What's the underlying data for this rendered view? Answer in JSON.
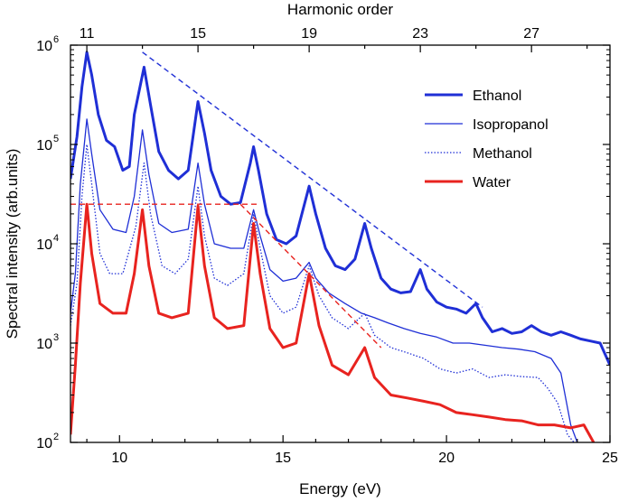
{
  "chart_data": {
    "type": "line",
    "xlabel": "Energy (eV)",
    "ylabel": "Spectral intensity (arb.units)",
    "top_axis_label": "Harmonic order",
    "xlim": [
      8.5,
      25
    ],
    "ylim": [
      100,
      1000000
    ],
    "yscale": "log",
    "x_ticks": [
      10,
      15,
      20,
      25
    ],
    "x_tick_labels": [
      "10",
      "15",
      "20",
      "25"
    ],
    "y_ticks": [
      {
        "value": 100,
        "base": "10",
        "exp": "2"
      },
      {
        "value": 1000,
        "base": "10",
        "exp": "3"
      },
      {
        "value": 10000,
        "base": "10",
        "exp": "4"
      },
      {
        "value": 100000,
        "base": "10",
        "exp": "5"
      },
      {
        "value": 1000000,
        "base": "10",
        "exp": "6"
      }
    ],
    "top_ticks": [
      {
        "energy": 9.0,
        "label": "11"
      },
      {
        "energy": 12.4,
        "label": "15"
      },
      {
        "energy": 15.8,
        "label": "19"
      },
      {
        "energy": 19.2,
        "label": "23"
      },
      {
        "energy": 22.6,
        "label": "27"
      }
    ],
    "top_minor_energies": [
      10.7,
      14.1,
      17.5,
      20.9,
      24.3
    ],
    "legend_position": "top-right",
    "series": [
      {
        "name": "Ethanol",
        "color": "#1f2fd6",
        "style": "solid",
        "width": 3,
        "points": [
          [
            8.5,
            45000
          ],
          [
            8.7,
            120000
          ],
          [
            8.85,
            380000
          ],
          [
            9.0,
            850000
          ],
          [
            9.15,
            500000
          ],
          [
            9.35,
            200000
          ],
          [
            9.6,
            110000
          ],
          [
            9.85,
            95000
          ],
          [
            10.1,
            55000
          ],
          [
            10.3,
            60000
          ],
          [
            10.45,
            200000
          ],
          [
            10.75,
            600000
          ],
          [
            10.95,
            250000
          ],
          [
            11.2,
            85000
          ],
          [
            11.5,
            55000
          ],
          [
            11.8,
            45000
          ],
          [
            12.1,
            55000
          ],
          [
            12.4,
            270000
          ],
          [
            12.6,
            130000
          ],
          [
            12.8,
            55000
          ],
          [
            13.1,
            30000
          ],
          [
            13.4,
            25000
          ],
          [
            13.7,
            26000
          ],
          [
            14.0,
            65000
          ],
          [
            14.1,
            95000
          ],
          [
            14.25,
            55000
          ],
          [
            14.5,
            20000
          ],
          [
            14.8,
            11000
          ],
          [
            15.1,
            10000
          ],
          [
            15.4,
            12000
          ],
          [
            15.8,
            38000
          ],
          [
            16.0,
            20000
          ],
          [
            16.3,
            9000
          ],
          [
            16.6,
            6000
          ],
          [
            16.9,
            5500
          ],
          [
            17.2,
            7000
          ],
          [
            17.5,
            16000
          ],
          [
            17.7,
            9000
          ],
          [
            18.0,
            4500
          ],
          [
            18.3,
            3500
          ],
          [
            18.6,
            3200
          ],
          [
            18.9,
            3300
          ],
          [
            19.2,
            5500
          ],
          [
            19.4,
            3500
          ],
          [
            19.7,
            2600
          ],
          [
            20.0,
            2300
          ],
          [
            20.3,
            2200
          ],
          [
            20.6,
            2000
          ],
          [
            20.9,
            2500
          ],
          [
            21.1,
            1800
          ],
          [
            21.4,
            1300
          ],
          [
            21.7,
            1400
          ],
          [
            22.0,
            1250
          ],
          [
            22.3,
            1300
          ],
          [
            22.6,
            1500
          ],
          [
            22.9,
            1300
          ],
          [
            23.2,
            1200
          ],
          [
            23.5,
            1300
          ],
          [
            23.8,
            1200
          ],
          [
            24.1,
            1100
          ],
          [
            24.4,
            1050
          ],
          [
            24.7,
            1000
          ],
          [
            25.0,
            600
          ]
        ]
      },
      {
        "name": "Isopropanol",
        "color": "#1f2fd6",
        "style": "solid",
        "width": 1.3,
        "points": [
          [
            8.5,
            2000
          ],
          [
            8.65,
            5000
          ],
          [
            8.8,
            40000
          ],
          [
            9.0,
            180000
          ],
          [
            9.15,
            80000
          ],
          [
            9.4,
            22000
          ],
          [
            9.8,
            14000
          ],
          [
            10.2,
            13000
          ],
          [
            10.45,
            30000
          ],
          [
            10.7,
            140000
          ],
          [
            10.9,
            50000
          ],
          [
            11.2,
            16000
          ],
          [
            11.6,
            13000
          ],
          [
            12.1,
            14000
          ],
          [
            12.4,
            65000
          ],
          [
            12.6,
            25000
          ],
          [
            12.9,
            10000
          ],
          [
            13.4,
            9000
          ],
          [
            13.8,
            9000
          ],
          [
            14.1,
            22000
          ],
          [
            14.3,
            12000
          ],
          [
            14.6,
            5500
          ],
          [
            15.0,
            4200
          ],
          [
            15.4,
            4500
          ],
          [
            15.8,
            6500
          ],
          [
            16.0,
            4500
          ],
          [
            16.4,
            3200
          ],
          [
            16.9,
            2500
          ],
          [
            17.4,
            2000
          ],
          [
            17.8,
            1800
          ],
          [
            18.2,
            1600
          ],
          [
            18.7,
            1400
          ],
          [
            19.2,
            1250
          ],
          [
            19.7,
            1150
          ],
          [
            20.2,
            1000
          ],
          [
            20.7,
            1000
          ],
          [
            21.2,
            950
          ],
          [
            21.7,
            900
          ],
          [
            22.2,
            870
          ],
          [
            22.7,
            820
          ],
          [
            23.2,
            700
          ],
          [
            23.5,
            500
          ],
          [
            23.8,
            150
          ],
          [
            24.0,
            100
          ]
        ]
      },
      {
        "name": "Methanol",
        "color": "#1f2fd6",
        "style": "dotted",
        "width": 1.3,
        "points": [
          [
            8.5,
            1500
          ],
          [
            8.7,
            4000
          ],
          [
            8.85,
            30000
          ],
          [
            9.0,
            100000
          ],
          [
            9.15,
            40000
          ],
          [
            9.4,
            8000
          ],
          [
            9.7,
            5000
          ],
          [
            10.1,
            5000
          ],
          [
            10.5,
            15000
          ],
          [
            10.75,
            65000
          ],
          [
            10.95,
            20000
          ],
          [
            11.3,
            6000
          ],
          [
            11.7,
            5000
          ],
          [
            12.1,
            7000
          ],
          [
            12.4,
            38000
          ],
          [
            12.6,
            12000
          ],
          [
            12.9,
            4500
          ],
          [
            13.3,
            3800
          ],
          [
            13.8,
            5000
          ],
          [
            14.1,
            20000
          ],
          [
            14.3,
            9000
          ],
          [
            14.6,
            3000
          ],
          [
            15.0,
            2000
          ],
          [
            15.4,
            2300
          ],
          [
            15.8,
            6000
          ],
          [
            16.1,
            3000
          ],
          [
            16.5,
            1800
          ],
          [
            17.0,
            1400
          ],
          [
            17.5,
            2000
          ],
          [
            17.8,
            1200
          ],
          [
            18.3,
            900
          ],
          [
            18.8,
            800
          ],
          [
            19.3,
            700
          ],
          [
            19.8,
            550
          ],
          [
            20.3,
            500
          ],
          [
            20.8,
            550
          ],
          [
            21.3,
            450
          ],
          [
            21.8,
            480
          ],
          [
            22.3,
            460
          ],
          [
            22.8,
            450
          ],
          [
            23.1,
            350
          ],
          [
            23.4,
            250
          ],
          [
            23.7,
            120
          ],
          [
            23.9,
            100
          ]
        ]
      },
      {
        "name": "Water",
        "color": "#e8231f",
        "style": "solid",
        "width": 3,
        "points": [
          [
            8.5,
            120
          ],
          [
            8.65,
            600
          ],
          [
            8.8,
            4000
          ],
          [
            9.0,
            25000
          ],
          [
            9.15,
            8000
          ],
          [
            9.4,
            2500
          ],
          [
            9.8,
            2000
          ],
          [
            10.2,
            2000
          ],
          [
            10.45,
            5000
          ],
          [
            10.7,
            22000
          ],
          [
            10.9,
            6000
          ],
          [
            11.2,
            2000
          ],
          [
            11.6,
            1800
          ],
          [
            12.1,
            2000
          ],
          [
            12.4,
            24000
          ],
          [
            12.6,
            6000
          ],
          [
            12.9,
            1800
          ],
          [
            13.3,
            1400
          ],
          [
            13.8,
            1500
          ],
          [
            14.1,
            16000
          ],
          [
            14.3,
            5000
          ],
          [
            14.6,
            1400
          ],
          [
            15.0,
            900
          ],
          [
            15.4,
            1000
          ],
          [
            15.8,
            5000
          ],
          [
            16.1,
            1500
          ],
          [
            16.5,
            600
          ],
          [
            17.0,
            480
          ],
          [
            17.5,
            900
          ],
          [
            17.8,
            450
          ],
          [
            18.3,
            300
          ],
          [
            18.8,
            280
          ],
          [
            19.3,
            260
          ],
          [
            19.8,
            240
          ],
          [
            20.3,
            200
          ],
          [
            20.8,
            190
          ],
          [
            21.3,
            180
          ],
          [
            21.8,
            170
          ],
          [
            22.3,
            165
          ],
          [
            22.8,
            150
          ],
          [
            23.3,
            150
          ],
          [
            23.8,
            140
          ],
          [
            24.2,
            150
          ],
          [
            24.5,
            100
          ]
        ]
      }
    ],
    "guide_lines": [
      {
        "color": "#1f2fd6",
        "from": [
          10.7,
          850000
        ],
        "to": [
          21.1,
          2300
        ]
      },
      {
        "color": "#e8231f",
        "from": [
          8.5,
          25000
        ],
        "to": [
          14.2,
          25000
        ]
      },
      {
        "color": "#e8231f",
        "from": [
          13.7,
          25000
        ],
        "to": [
          18.0,
          900
        ]
      }
    ]
  }
}
